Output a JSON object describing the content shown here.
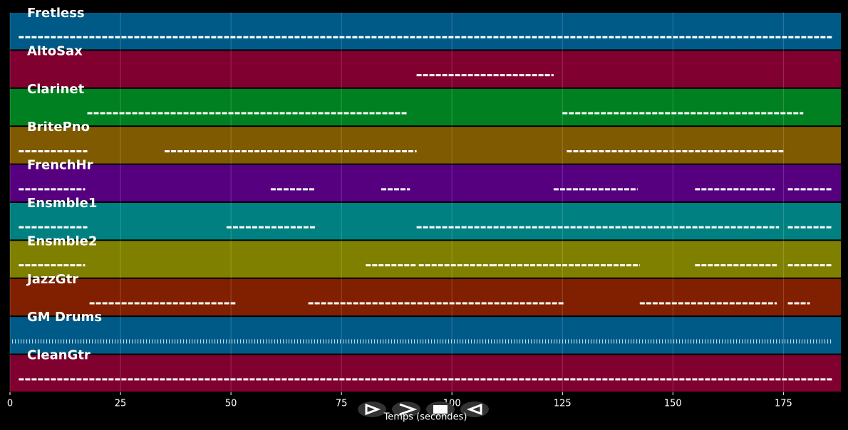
{
  "chart_data": {
    "type": "timeline",
    "xlabel": "Temps (secondes)",
    "xlim": [
      0,
      188
    ],
    "xticks": [
      0,
      25,
      50,
      75,
      100,
      125,
      150,
      175
    ],
    "grid": true,
    "series": [
      {
        "name": "Fretless",
        "color": "#005a87",
        "segments": [
          [
            2,
            186
          ]
        ]
      },
      {
        "name": "AltoSax",
        "color": "#80002f",
        "segments": [
          [
            92,
            123
          ]
        ]
      },
      {
        "name": "Clarinet",
        "color": "#008020",
        "segments": [
          [
            17.5,
            90
          ],
          [
            125,
            179.5
          ]
        ]
      },
      {
        "name": "BritePno",
        "color": "#805a00",
        "segments": [
          [
            2,
            17.5
          ],
          [
            35,
            92
          ],
          [
            126,
            175
          ]
        ]
      },
      {
        "name": "FrenchHr",
        "color": "#560080",
        "segments": [
          [
            2,
            17
          ],
          [
            59,
            69
          ],
          [
            84,
            90.5
          ],
          [
            123,
            142
          ],
          [
            155,
            173
          ],
          [
            176,
            186
          ]
        ]
      },
      {
        "name": "Ensmble1",
        "color": "#008080",
        "segments": [
          [
            2,
            17.5
          ],
          [
            49,
            69
          ],
          [
            92,
            174
          ],
          [
            176,
            186
          ]
        ]
      },
      {
        "name": "Ensmble2",
        "color": "#808000",
        "segments": [
          [
            2,
            17
          ],
          [
            80.5,
            92
          ],
          [
            92.5,
            109
          ],
          [
            109,
            142.5
          ],
          [
            155,
            173.5
          ],
          [
            176,
            186
          ]
        ]
      },
      {
        "name": "JazzGtr",
        "color": "#802000",
        "segments": [
          [
            18,
            51
          ],
          [
            67.5,
            125.5
          ],
          [
            142.5,
            173.5
          ],
          [
            176,
            181
          ]
        ]
      },
      {
        "name": "GM Drums",
        "color": "#005a87",
        "segments": [
          [
            0.5,
            186
          ]
        ]
      },
      {
        "name": "CleanGtr",
        "color": "#80002f",
        "segments": [
          [
            2,
            186
          ]
        ]
      }
    ]
  }
}
